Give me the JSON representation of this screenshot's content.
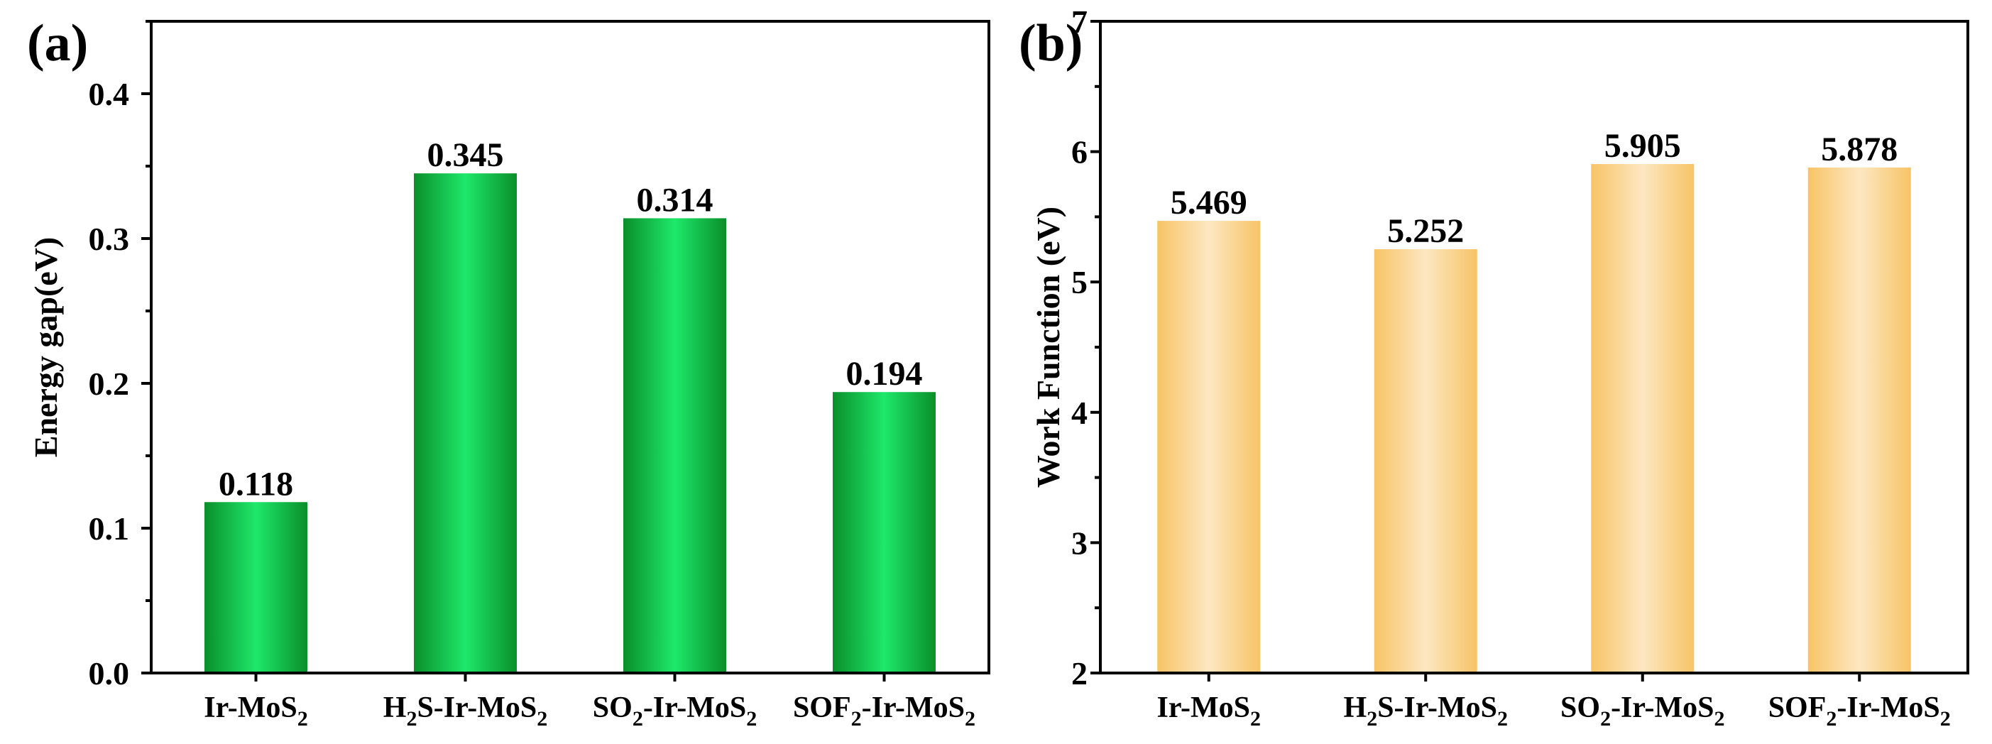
{
  "chart_data": [
    {
      "panel": "(a)",
      "type": "bar",
      "categories": [
        {
          "base": "Ir-MoS",
          "sub": "2",
          "label": "Ir-MoS2"
        },
        {
          "pre": "H",
          "presub": "2",
          "base": "S-Ir-MoS",
          "sub": "2",
          "label": "H2S-Ir-MoS2"
        },
        {
          "pre": "SO",
          "presub": "2",
          "base": "-Ir-MoS",
          "sub": "2",
          "label": "SO2-Ir-MoS2"
        },
        {
          "pre": "SOF",
          "presub": "2",
          "base": "-Ir-MoS",
          "sub": "2",
          "label": "SOF2-Ir-MoS2"
        }
      ],
      "values": [
        0.118,
        0.345,
        0.314,
        0.194
      ],
      "value_labels": [
        "0.118",
        "0.345",
        "0.314",
        "0.194"
      ],
      "ylabel": "Energy gap(eV)",
      "ylim": [
        0.0,
        0.45
      ],
      "yticks": [
        0.0,
        0.1,
        0.2,
        0.3,
        0.4
      ],
      "ytick_labels": [
        "0.0",
        "0.1",
        "0.2",
        "0.3",
        "0.4"
      ],
      "bar_colors": {
        "edge": "#0a8f2a",
        "mid": "#1ee86a"
      }
    },
    {
      "panel": "(b)",
      "type": "bar",
      "categories": [
        {
          "base": "Ir-MoS",
          "sub": "2",
          "label": "Ir-MoS2"
        },
        {
          "pre": "H",
          "presub": "2",
          "base": "S-Ir-MoS",
          "sub": "2",
          "label": "H2S-Ir-MoS2"
        },
        {
          "pre": "SO",
          "presub": "2",
          "base": "-Ir-MoS",
          "sub": "2",
          "label": "SO2-Ir-MoS2"
        },
        {
          "pre": "SOF",
          "presub": "2",
          "base": "-Ir-MoS",
          "sub": "2",
          "label": "SOF2-Ir-MoS2"
        }
      ],
      "values": [
        5.469,
        5.252,
        5.905,
        5.878
      ],
      "value_labels": [
        "5.469",
        "5.252",
        "5.905",
        "5.878"
      ],
      "ylabel": "Work Function (eV)",
      "ylim": [
        2,
        7
      ],
      "yticks": [
        2,
        3,
        4,
        5,
        6,
        7
      ],
      "ytick_labels": [
        "2",
        "3",
        "4",
        "5",
        "6",
        "7"
      ],
      "bar_colors": {
        "edge": "#f7c466",
        "mid": "#fde7c2"
      }
    }
  ]
}
